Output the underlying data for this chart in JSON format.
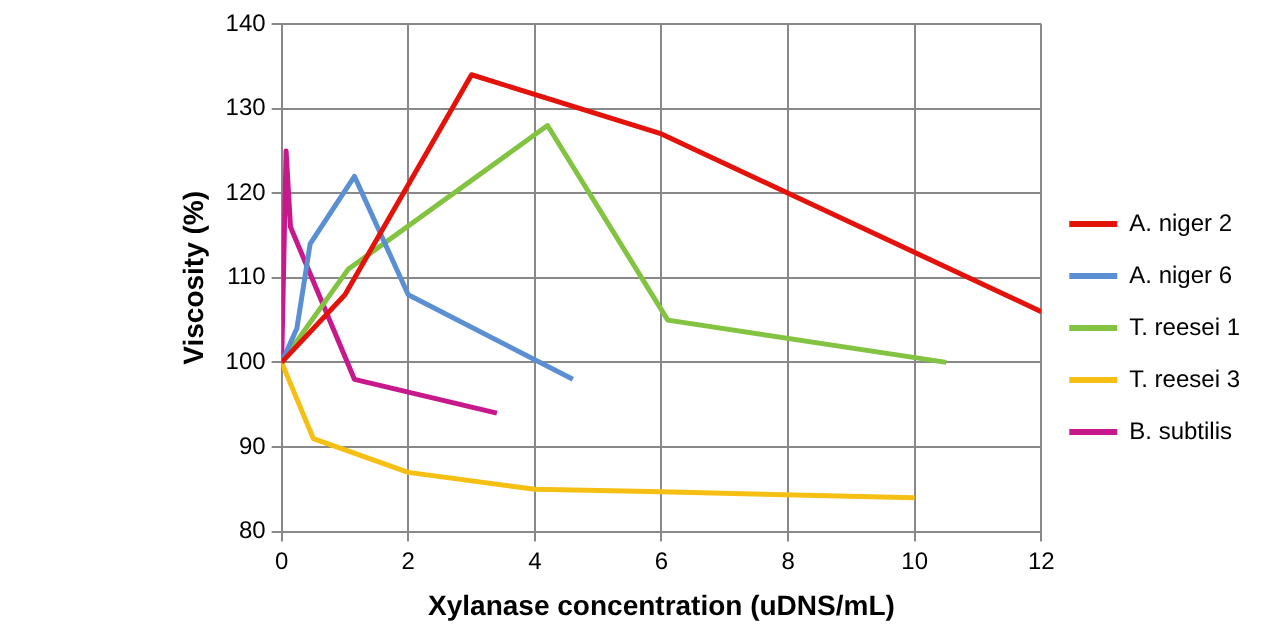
{
  "chart_data": {
    "type": "line",
    "xlabel": "Xylanase concentration (uDNS/mL)",
    "ylabel": "Viscosity (%)",
    "xlim": [
      0,
      12
    ],
    "xticks": [
      0,
      2,
      4,
      6,
      8,
      10,
      12
    ],
    "ylim": [
      80,
      140
    ],
    "yticks": [
      80,
      90,
      100,
      110,
      120,
      130,
      140
    ],
    "grid": true,
    "legend": "right",
    "marker": "none",
    "series": [
      {
        "name": "A. niger 2",
        "color": "#e3120b",
        "x": [
          0,
          1.0,
          3.0,
          6.0,
          12
        ],
        "values": [
          100,
          108,
          134,
          127,
          106
        ]
      },
      {
        "name": "A. niger 6",
        "color": "#5b8fd4",
        "x": [
          0,
          0.24,
          0.45,
          1.15,
          2.0,
          4.6
        ],
        "values": [
          100,
          104,
          114,
          122,
          108,
          98
        ]
      },
      {
        "name": "T. reesei 1",
        "color": "#82c341",
        "x": [
          0,
          1.05,
          4.2,
          6.1,
          10.5
        ],
        "values": [
          100,
          111,
          128,
          105,
          100
        ]
      },
      {
        "name": "T. reesei 3",
        "color": "#f5c013",
        "x": [
          0,
          0.5,
          2,
          4,
          6,
          10
        ],
        "values": [
          100,
          91,
          87,
          85,
          84.7,
          84
        ]
      },
      {
        "name": "B. subtilis",
        "color": "#c8198c",
        "x": [
          0,
          0.07,
          0.14,
          1.15,
          3.4
        ],
        "values": [
          100,
          125,
          116,
          98,
          94
        ]
      }
    ]
  }
}
